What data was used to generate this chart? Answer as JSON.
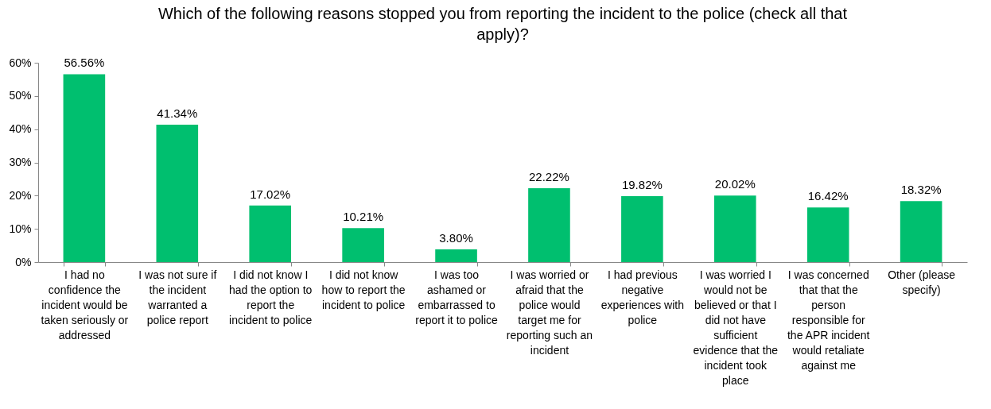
{
  "chart_data": {
    "type": "bar",
    "title": "Which of the following reasons stopped you from reporting the incident to the police (check all that apply)?",
    "categories": [
      "I had no confidence the incident would be taken seriously or addressed",
      "I was not sure if the incident warranted a police report",
      "I did not know I had the option to report the incident to police",
      "I did not know how to report the incident to police",
      "I was too ashamed or embarrassed to report it to police",
      "I was worried or afraid that the police would target me for reporting such an incident",
      "I had previous negative experiences with police",
      "I was worried I would not be believed or that I did not have sufficient evidence that the incident took place",
      "I was concerned that that the person responsible for the APR incident would retaliate against me",
      "Other (please specify)"
    ],
    "values": [
      56.56,
      41.34,
      17.02,
      10.21,
      3.8,
      22.22,
      19.82,
      20.02,
      16.42,
      18.32
    ],
    "value_labels": [
      "56.56%",
      "41.34%",
      "17.02%",
      "10.21%",
      "3.80%",
      "22.22%",
      "19.82%",
      "20.02%",
      "16.42%",
      "18.32%"
    ],
    "color": "#00bf6f",
    "ylim": [
      0,
      60
    ],
    "yticks": [
      {
        "value": 0,
        "label": "0%"
      },
      {
        "value": 10,
        "label": "10%"
      },
      {
        "value": 20,
        "label": "20%"
      },
      {
        "value": 30,
        "label": "30%"
      },
      {
        "value": 40,
        "label": "40%"
      },
      {
        "value": 50,
        "label": "50%"
      },
      {
        "value": 60,
        "label": "60%"
      }
    ],
    "grid": false
  }
}
